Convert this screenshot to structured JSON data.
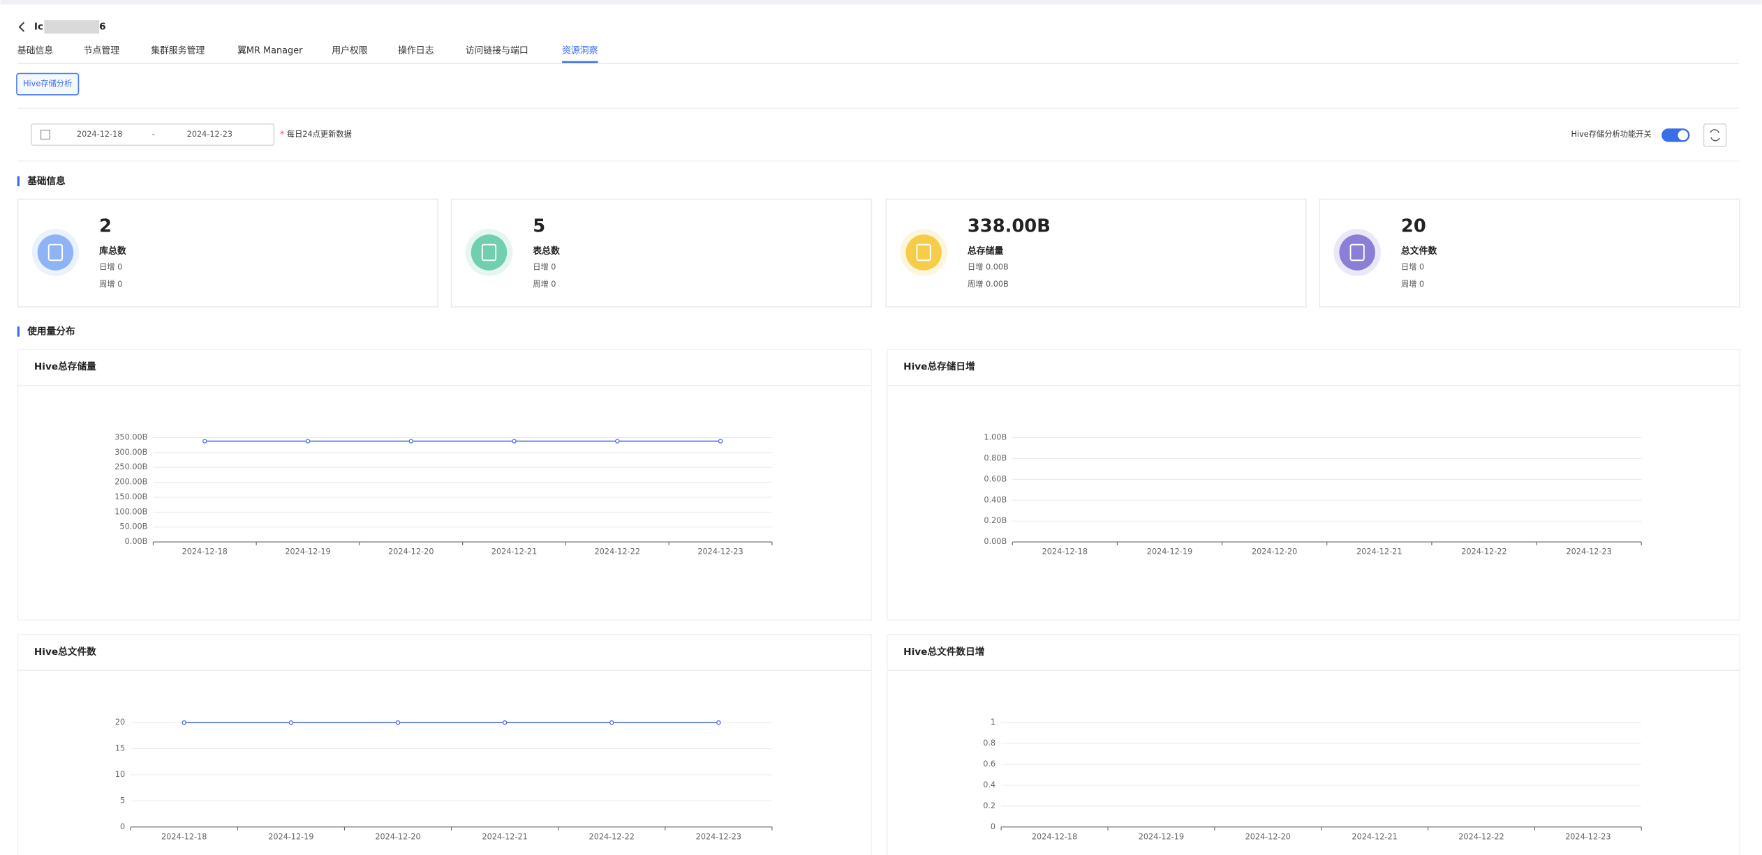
{
  "header": {
    "title_start": "Ic",
    "title_end": "6"
  },
  "tabs": [
    "基础信息",
    "节点管理",
    "集群服务管理",
    "翼MR Manager",
    "用户权限",
    "操作日志",
    "访问链接与端口",
    "资源洞察"
  ],
  "active_tab": 7,
  "sub_tab": "Hive存储分析",
  "filter": {
    "start_date": "2024-12-18",
    "separator": "-",
    "end_date": "2024-12-23",
    "note_mark": "*",
    "note": "每日24点更新数据",
    "switch_label": "Hive存储分析功能开关",
    "switch_on": true
  },
  "basic_section": "基础信息",
  "stats": [
    {
      "value": "2",
      "label": "库总数",
      "daily": "日增 0",
      "weekly": "周增 0",
      "color": "#8fb4f5"
    },
    {
      "value": "5",
      "label": "表总数",
      "daily": "日增 0",
      "weekly": "周增 0",
      "color": "#6fcfae"
    },
    {
      "value": "338.00B",
      "label": "总存储量",
      "daily": "日增 0.00B",
      "weekly": "周增 0.00B",
      "color": "#f6cd48"
    },
    {
      "value": "20",
      "label": "总文件数",
      "daily": "日增 0",
      "weekly": "周增 0",
      "color": "#8b7ed6"
    }
  ],
  "usage_section": "使用量分布",
  "chart_data": [
    {
      "type": "line",
      "title": "Hive总存储量",
      "color": "#4a6ee0",
      "categories": [
        "2024-12-18",
        "2024-12-19",
        "2024-12-20",
        "2024-12-21",
        "2024-12-22",
        "2024-12-23"
      ],
      "values": [
        338,
        338,
        338,
        338,
        338,
        338
      ],
      "ylim": [
        0,
        350
      ],
      "yticks": [
        {
          "value": 0,
          "label": "0.00B"
        },
        {
          "value": 50,
          "label": "50.00B"
        },
        {
          "value": 100,
          "label": "100.00B"
        },
        {
          "value": 150,
          "label": "150.00B"
        },
        {
          "value": 200,
          "label": "200.00B"
        },
        {
          "value": 250,
          "label": "250.00B"
        },
        {
          "value": 300,
          "label": "300.00B"
        },
        {
          "value": 350,
          "label": "350.00B"
        }
      ],
      "grid": true
    },
    {
      "type": "line",
      "title": "Hive总存储日增",
      "color": "#4a6ee0",
      "categories": [
        "2024-12-18",
        "2024-12-19",
        "2024-12-20",
        "2024-12-21",
        "2024-12-22",
        "2024-12-23"
      ],
      "values": [
        null,
        null,
        null,
        null,
        null,
        null
      ],
      "ylim": [
        0,
        1
      ],
      "yticks": [
        {
          "value": 0,
          "label": "0.00B"
        },
        {
          "value": 0.2,
          "label": "0.20B"
        },
        {
          "value": 0.4,
          "label": "0.40B"
        },
        {
          "value": 0.6,
          "label": "0.60B"
        },
        {
          "value": 0.8,
          "label": "0.80B"
        },
        {
          "value": 1,
          "label": "1.00B"
        }
      ],
      "grid": true
    },
    {
      "type": "line",
      "title": "Hive总文件数",
      "color": "#4a6ee0",
      "categories": [
        "2024-12-18",
        "2024-12-19",
        "2024-12-20",
        "2024-12-21",
        "2024-12-22",
        "2024-12-23"
      ],
      "values": [
        20,
        20,
        20,
        20,
        20,
        20
      ],
      "ylim": [
        0,
        20
      ],
      "yticks": [
        0,
        5,
        10,
        15,
        20
      ],
      "grid": true
    },
    {
      "type": "line",
      "title": "Hive总文件数日增",
      "color": "#4a6ee0",
      "categories": [
        "2024-12-18",
        "2024-12-19",
        "2024-12-20",
        "2024-12-21",
        "2024-12-22",
        "2024-12-23"
      ],
      "values": [
        null,
        null,
        null,
        null,
        null,
        null
      ],
      "ylim": [
        0,
        1
      ],
      "yticks": [
        0,
        0.2,
        0.4,
        0.6,
        0.8,
        1
      ],
      "grid": true
    }
  ]
}
